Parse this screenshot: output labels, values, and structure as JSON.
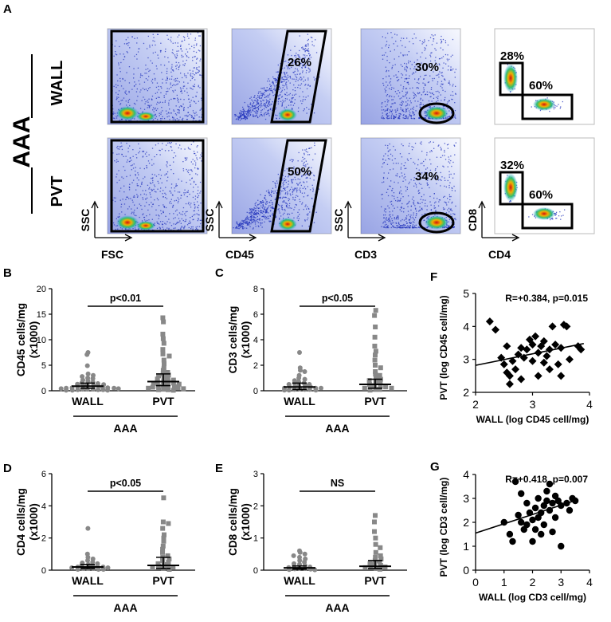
{
  "figure": {
    "panel_letters": [
      "A",
      "B",
      "C",
      "D",
      "E",
      "F",
      "G"
    ]
  },
  "flow": {
    "group_label": "AAA",
    "row_labels": [
      "WALL",
      "PVT"
    ],
    "plots": [
      {
        "row": "WALL",
        "col": 0,
        "gate": "rect",
        "pct": ""
      },
      {
        "row": "WALL",
        "col": 1,
        "gate": "para",
        "pct": "26%"
      },
      {
        "row": "WALL",
        "col": 2,
        "gate": "ellipse",
        "pct": "30%"
      },
      {
        "row": "WALL",
        "col": 3,
        "gate": "cd4cd8",
        "pct_cd8": "28%",
        "pct_cd4": "60%"
      },
      {
        "row": "PVT",
        "col": 0,
        "gate": "rect",
        "pct": ""
      },
      {
        "row": "PVT",
        "col": 1,
        "gate": "para",
        "pct": "50%"
      },
      {
        "row": "PVT",
        "col": 2,
        "gate": "ellipse",
        "pct": "34%"
      },
      {
        "row": "PVT",
        "col": 3,
        "gate": "cd4cd8",
        "pct_cd8": "32%",
        "pct_cd4": "60%"
      }
    ],
    "axes": [
      {
        "y": "SSC",
        "x": "FSC"
      },
      {
        "y": "SSC",
        "x": "CD45"
      },
      {
        "y": "SSC",
        "x": "CD3"
      },
      {
        "y": "CD8",
        "x": "CD4"
      }
    ]
  },
  "chart_data": [
    {
      "id": "B",
      "type": "scatter",
      "ylabel_lines": [
        "CD45 cells/mg",
        "(x1000)"
      ],
      "yticks": [
        0,
        5,
        10,
        15,
        20
      ],
      "ylim": [
        0,
        20
      ],
      "categories": [
        "WALL",
        "PVT"
      ],
      "group_label": "AAA",
      "stat": "p<0.01",
      "series": [
        {
          "name": "WALL",
          "marker": "circle",
          "color": "#888888",
          "median": 0.9,
          "err": [
            0.5,
            1.5
          ],
          "values": [
            7.5,
            7.1,
            4.9,
            3.3,
            3.0,
            2.8,
            2.5,
            2.4,
            2.1,
            1.9,
            1.7,
            1.5,
            1.4,
            1.3,
            1.2,
            1.1,
            1.0,
            1.0,
            0.9,
            0.8,
            0.7,
            0.6,
            0.6,
            0.5,
            0.5,
            0.4,
            0.4,
            0.3,
            0.3,
            0.3,
            0.2,
            0.2,
            0.2,
            0.1,
            0.1,
            0.1
          ]
        },
        {
          "name": "PVT",
          "marker": "square",
          "color": "#888888",
          "median": 1.8,
          "err": [
            1.0,
            3.3
          ],
          "values": [
            14.3,
            13.5,
            11.1,
            10.2,
            9.3,
            8.1,
            7.2,
            6.8,
            6.0,
            5.3,
            4.4,
            4.0,
            3.6,
            3.3,
            3.1,
            2.9,
            2.7,
            2.5,
            2.3,
            2.1,
            1.9,
            1.8,
            1.7,
            1.5,
            1.4,
            1.3,
            1.1,
            1.0,
            0.9,
            0.8,
            0.7,
            0.6,
            0.5,
            0.4,
            0.3,
            0.2,
            0.2,
            0.1
          ]
        }
      ]
    },
    {
      "id": "C",
      "type": "scatter",
      "ylabel_lines": [
        "CD3 cells/mg",
        "(x1000)"
      ],
      "yticks": [
        0,
        2,
        4,
        6,
        8
      ],
      "ylim": [
        0,
        8
      ],
      "categories": [
        "WALL",
        "PVT"
      ],
      "group_label": "AAA",
      "stat": "p<0.05",
      "series": [
        {
          "name": "WALL",
          "marker": "circle",
          "color": "#888888",
          "median": 0.3,
          "err": [
            0.1,
            0.6
          ],
          "values": [
            3.0,
            1.8,
            1.6,
            1.5,
            1.2,
            1.0,
            0.9,
            0.8,
            0.7,
            0.6,
            0.6,
            0.5,
            0.5,
            0.4,
            0.4,
            0.3,
            0.3,
            0.3,
            0.2,
            0.2,
            0.2,
            0.15,
            0.1,
            0.1,
            0.1,
            0.05,
            0.05,
            0.05
          ]
        },
        {
          "name": "PVT",
          "marker": "square",
          "color": "#888888",
          "median": 0.5,
          "err": [
            0.2,
            0.9
          ],
          "values": [
            6.3,
            5.9,
            5.0,
            4.2,
            3.5,
            3.1,
            2.8,
            2.4,
            2.0,
            1.8,
            1.5,
            1.3,
            1.2,
            1.0,
            0.9,
            0.8,
            0.7,
            0.6,
            0.5,
            0.4,
            0.4,
            0.3,
            0.3,
            0.2,
            0.2,
            0.1,
            0.1,
            0.05
          ]
        }
      ]
    },
    {
      "id": "D",
      "type": "scatter",
      "ylabel_lines": [
        "CD4 cells/mg",
        "(x1000)"
      ],
      "yticks": [
        0,
        2,
        4,
        6
      ],
      "ylim": [
        0,
        6
      ],
      "categories": [
        "WALL",
        "PVT"
      ],
      "group_label": "AAA",
      "stat": "p<0.05",
      "series": [
        {
          "name": "WALL",
          "marker": "circle",
          "color": "#888888",
          "median": 0.2,
          "err": [
            0.1,
            0.35
          ],
          "values": [
            2.6,
            1.0,
            0.8,
            0.7,
            0.6,
            0.5,
            0.45,
            0.4,
            0.35,
            0.3,
            0.3,
            0.25,
            0.2,
            0.2,
            0.15,
            0.15,
            0.1,
            0.1,
            0.1,
            0.05,
            0.05,
            0.05
          ]
        },
        {
          "name": "PVT",
          "marker": "square",
          "color": "#888888",
          "median": 0.3,
          "err": [
            0.1,
            0.8
          ],
          "values": [
            4.5,
            3.0,
            2.9,
            2.6,
            2.2,
            2.0,
            1.8,
            1.5,
            1.3,
            1.1,
            0.9,
            0.8,
            0.7,
            0.6,
            0.5,
            0.4,
            0.35,
            0.3,
            0.25,
            0.2,
            0.15,
            0.1,
            0.05
          ]
        }
      ]
    },
    {
      "id": "E",
      "type": "scatter",
      "ylabel_lines": [
        "CD8 cells/mg",
        "(x1000)"
      ],
      "yticks": [
        0,
        1,
        2,
        3
      ],
      "ylim": [
        0,
        3
      ],
      "categories": [
        "WALL",
        "PVT"
      ],
      "group_label": "AAA",
      "stat": "NS",
      "series": [
        {
          "name": "WALL",
          "marker": "circle",
          "color": "#888888",
          "median": 0.07,
          "err": [
            0.03,
            0.13
          ],
          "values": [
            0.6,
            0.55,
            0.5,
            0.45,
            0.4,
            0.35,
            0.3,
            0.25,
            0.2,
            0.18,
            0.15,
            0.12,
            0.1,
            0.08,
            0.06,
            0.05,
            0.04,
            0.03,
            0.02,
            0.01
          ]
        },
        {
          "name": "PVT",
          "marker": "square",
          "color": "#888888",
          "median": 0.12,
          "err": [
            0.05,
            0.3
          ],
          "values": [
            1.7,
            1.5,
            1.2,
            1.0,
            0.8,
            0.7,
            0.55,
            0.45,
            0.4,
            0.35,
            0.3,
            0.25,
            0.2,
            0.18,
            0.15,
            0.12,
            0.1,
            0.08,
            0.05,
            0.03
          ]
        }
      ]
    },
    {
      "id": "F",
      "type": "scatter",
      "title": "R=+0.384, p=0.015",
      "xlabel": "WALL (log CD45 cell/mg)",
      "ylabel": "PVT (log CD45 cell/mg)",
      "xlim": [
        2,
        4
      ],
      "ylim": [
        2,
        5
      ],
      "xticks": [
        2,
        3,
        4
      ],
      "yticks": [
        2,
        3,
        4,
        5
      ],
      "marker": "diamond",
      "fit": {
        "x": [
          2,
          3.9
        ],
        "y": [
          2.82,
          3.48
        ]
      },
      "points": [
        [
          2.25,
          4.15
        ],
        [
          2.35,
          3.9
        ],
        [
          2.45,
          3.05
        ],
        [
          2.5,
          2.85
        ],
        [
          2.55,
          2.6
        ],
        [
          2.55,
          3.4
        ],
        [
          2.6,
          2.5
        ],
        [
          2.6,
          2.25
        ],
        [
          2.65,
          2.95
        ],
        [
          2.7,
          2.7
        ],
        [
          2.75,
          3.15
        ],
        [
          2.8,
          3.35
        ],
        [
          2.8,
          2.4
        ],
        [
          2.85,
          3.05
        ],
        [
          2.9,
          3.3
        ],
        [
          2.95,
          3.6
        ],
        [
          3.0,
          3.45
        ],
        [
          3.0,
          2.95
        ],
        [
          3.05,
          3.7
        ],
        [
          3.1,
          3.2
        ],
        [
          3.1,
          2.5
        ],
        [
          3.15,
          3.4
        ],
        [
          3.2,
          3.55
        ],
        [
          3.2,
          2.9
        ],
        [
          3.25,
          3.1
        ],
        [
          3.3,
          2.7
        ],
        [
          3.3,
          3.3
        ],
        [
          3.35,
          4.0
        ],
        [
          3.4,
          3.45
        ],
        [
          3.45,
          2.85
        ],
        [
          3.5,
          3.35
        ],
        [
          3.5,
          2.5
        ],
        [
          3.55,
          4.05
        ],
        [
          3.6,
          4.0
        ],
        [
          3.65,
          3.0
        ],
        [
          3.8,
          3.4
        ],
        [
          3.85,
          3.3
        ]
      ]
    },
    {
      "id": "G",
      "type": "scatter",
      "title": "R=+0.418, p=0.007",
      "xlabel": "WALL (log CD3 cell/mg)",
      "ylabel": "PVT (log CD3 cell/mg)",
      "xlim": [
        0,
        4
      ],
      "ylim": [
        0,
        4
      ],
      "xticks": [
        0,
        1,
        2,
        3,
        4
      ],
      "yticks": [
        0,
        1,
        2,
        3,
        4
      ],
      "marker": "circle",
      "fit": {
        "x": [
          0,
          3.6
        ],
        "y": [
          1.55,
          2.95
        ]
      },
      "points": [
        [
          1.0,
          2.0
        ],
        [
          1.2,
          1.5
        ],
        [
          1.3,
          1.2
        ],
        [
          1.4,
          3.7
        ],
        [
          1.5,
          2.3
        ],
        [
          1.6,
          3.2
        ],
        [
          1.6,
          2.0
        ],
        [
          1.7,
          1.7
        ],
        [
          1.8,
          2.8
        ],
        [
          1.8,
          1.9
        ],
        [
          1.9,
          2.4
        ],
        [
          2.0,
          2.1
        ],
        [
          2.0,
          1.2
        ],
        [
          2.1,
          2.6
        ],
        [
          2.1,
          1.7
        ],
        [
          2.2,
          3.0
        ],
        [
          2.2,
          2.2
        ],
        [
          2.3,
          2.4
        ],
        [
          2.3,
          1.5
        ],
        [
          2.4,
          2.7
        ],
        [
          2.4,
          1.9
        ],
        [
          2.5,
          3.3
        ],
        [
          2.5,
          2.9
        ],
        [
          2.6,
          3.6
        ],
        [
          2.6,
          2.5
        ],
        [
          2.7,
          2.8
        ],
        [
          2.7,
          1.6
        ],
        [
          2.8,
          3.1
        ],
        [
          2.8,
          2.2
        ],
        [
          2.9,
          2.9
        ],
        [
          3.0,
          2.7
        ],
        [
          3.0,
          1.0
        ],
        [
          3.2,
          2.8
        ],
        [
          3.3,
          2.5
        ],
        [
          3.4,
          3.0
        ],
        [
          3.5,
          2.9
        ]
      ]
    }
  ]
}
